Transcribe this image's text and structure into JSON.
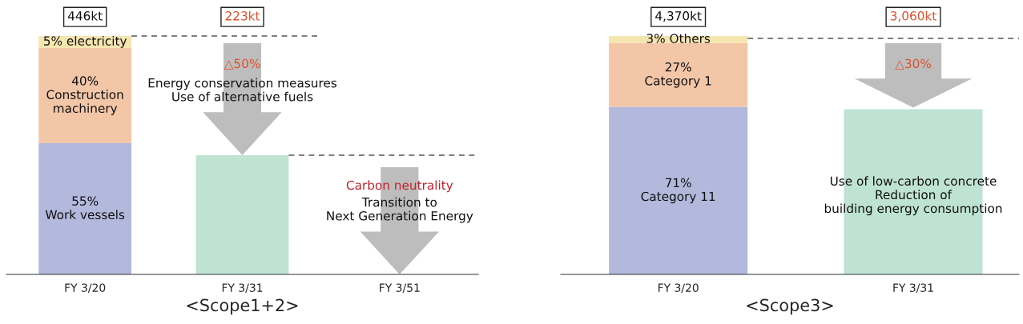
{
  "chart_data": [
    {
      "type": "bar",
      "stacked": true,
      "xlabel": "<Scope1+2>",
      "categories": [
        "FY 3/20",
        "FY 3/31",
        "FY 3/51"
      ],
      "series": [
        {
          "colors": [
            "#b3b9dc",
            "#bfe3d3",
            "#bfe3d3"
          ],
          "values": [
            55,
            50,
            0
          ],
          "value_labels": [
            "55%\nWork vessels",
            null,
            null
          ]
        },
        {
          "color": "#f3c6a8",
          "values": [
            40,
            null,
            null
          ],
          "value_labels": [
            "40%\nConstruction\nmachinery",
            null,
            null
          ]
        },
        {
          "color": "#f5e6b0",
          "values": [
            5,
            null,
            null
          ],
          "value_labels": [
            "5% electricity",
            null,
            null
          ]
        }
      ],
      "ref_lines": [
        {
          "axis": "y",
          "value": 100,
          "line_style": "dashed",
          "color": "#555555"
        },
        {
          "axis": "y",
          "value": 50,
          "line_style": "dashed",
          "color": "#555555"
        }
      ],
      "annotations": [
        "446kt",
        "223kt",
        "△50%",
        "Energy conservation measures\nUse of alternative fuels",
        "Carbon neutrality",
        "Transition to\nNext Generation Energy"
      ],
      "grid": false,
      "legend": false
    },
    {
      "type": "bar",
      "stacked": true,
      "xlabel": "<Scope3>",
      "categories": [
        "FY 3/20",
        "FY 3/31"
      ],
      "series": [
        {
          "colors": [
            "#b3b9dc",
            "#bfe3d3"
          ],
          "values": [
            71,
            70
          ],
          "value_labels": [
            "71%\nCategory 11",
            null
          ]
        },
        {
          "color": "#f3c6a8",
          "values": [
            27,
            null
          ],
          "value_labels": [
            "27%\nCategory 1",
            null
          ]
        },
        {
          "color": "#f5e6b0",
          "values": [
            3,
            null
          ],
          "value_labels": [
            "3% Others",
            null
          ]
        }
      ],
      "ref_lines": [
        {
          "axis": "y",
          "value": 100,
          "line_style": "dashed",
          "color": "#555555"
        }
      ],
      "annotations": [
        "4,370kt",
        "3,060kt",
        "△30%",
        "Use of low-carbon concrete\nReduction of\nbuilding energy consumption"
      ],
      "grid": false,
      "legend": false
    }
  ]
}
